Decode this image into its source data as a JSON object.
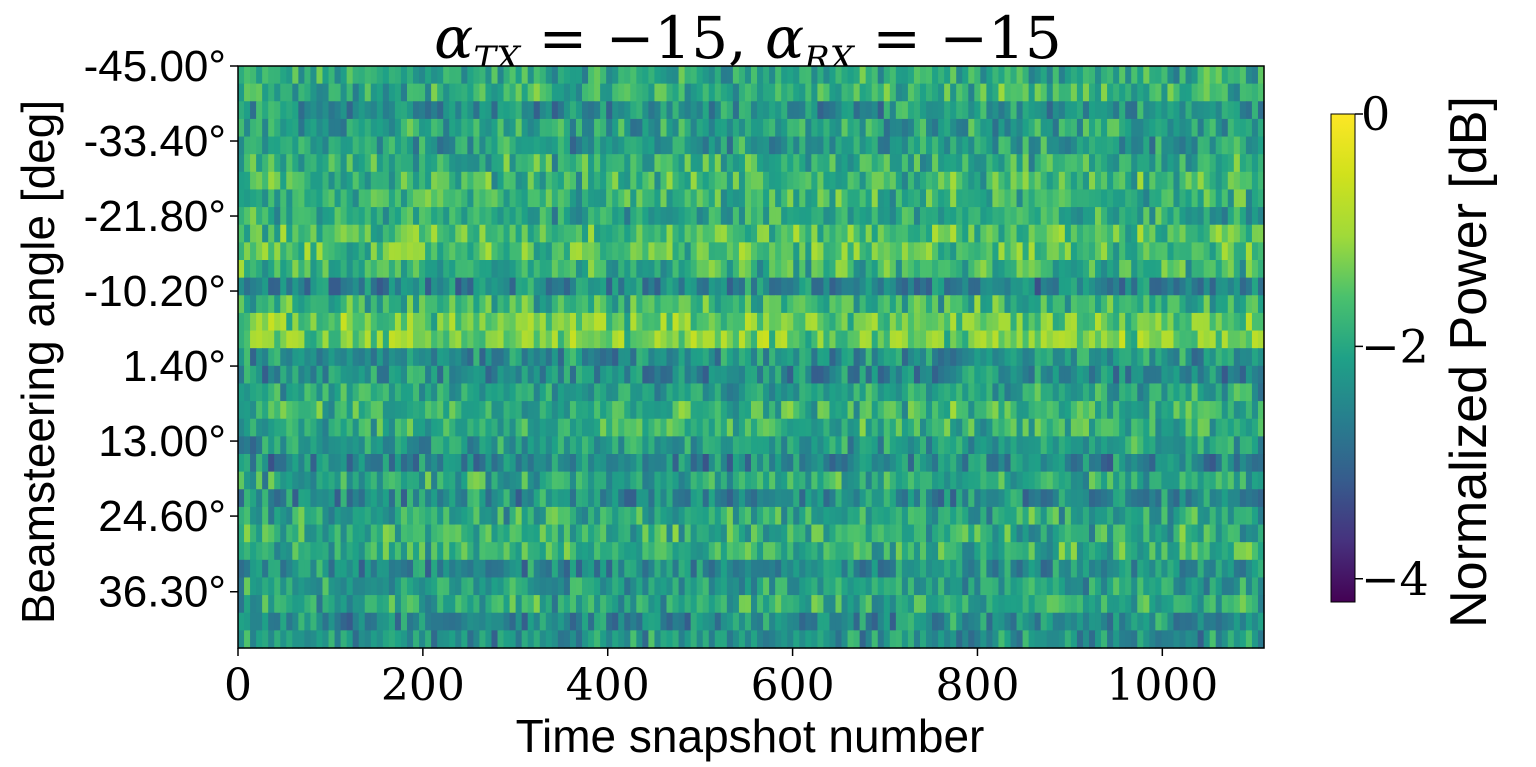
{
  "chart_data": {
    "type": "heatmap",
    "title": {
      "prefix": "α",
      "sub1": "TX",
      "eq1": " = −15, ",
      "prefix2": "α",
      "sub2": "RX",
      "eq2": " = −15"
    },
    "xlabel": "Time snapshot number",
    "ylabel": "Beamsteering angle [deg]",
    "xlim": [
      0,
      1110
    ],
    "x_ticks": [
      0,
      200,
      400,
      600,
      800,
      1000
    ],
    "x_tick_labels": [
      "0",
      "200",
      "400",
      "600",
      "800",
      "1000"
    ],
    "ylim": [
      -45.0,
      45.0
    ],
    "y_ticks": [
      -45.0,
      -33.4,
      -21.8,
      -10.2,
      1.4,
      13.0,
      24.6,
      36.3
    ],
    "y_tick_labels": [
      "-45.00°",
      "-33.40°",
      "-21.80°",
      "-10.20°",
      "1.40°",
      "13.00°",
      "24.60°",
      "36.30°"
    ],
    "colorbar": {
      "label": "Normalized Power [dB]",
      "range": [
        -4.2,
        0
      ],
      "ticks": [
        0,
        -2,
        -4
      ],
      "tick_labels": [
        "0",
        "−2",
        "−4"
      ],
      "colormap": "viridis"
    },
    "row_profile": {
      "description_angles_deg": [
        -45.0,
        -42.2,
        -39.4,
        -36.7,
        -33.9,
        -31.1,
        -28.3,
        -25.6,
        -22.8,
        -20.0,
        -17.2,
        -14.4,
        -11.7,
        -8.9,
        -6.1,
        -3.3,
        -0.6,
        2.2,
        5.0,
        7.8,
        10.6,
        13.3,
        16.1,
        18.9,
        21.7,
        24.4,
        27.2,
        30.0,
        32.8,
        35.6,
        38.3,
        41.1,
        43.9
      ],
      "mean_power_db": [
        -2.0,
        -1.9,
        -2.3,
        -2.1,
        -2.2,
        -1.9,
        -1.8,
        -1.9,
        -2.0,
        -1.6,
        -1.6,
        -1.8,
        -2.5,
        -1.8,
        -1.4,
        -1.3,
        -2.3,
        -2.4,
        -2.1,
        -1.8,
        -1.9,
        -2.2,
        -2.5,
        -2.0,
        -2.4,
        -2.0,
        -1.9,
        -1.9,
        -2.4,
        -2.1,
        -2.0,
        -2.4,
        -2.3
      ]
    }
  }
}
